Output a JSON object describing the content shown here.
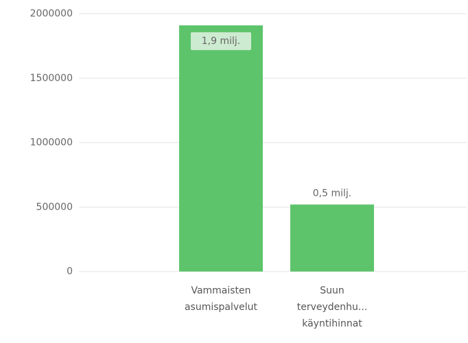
{
  "chart_data": {
    "type": "bar",
    "categories": [
      "Vammaisten asumispalvelut",
      "Suun terveydenhu... käyntihinnat"
    ],
    "values": [
      1910000,
      520000
    ],
    "value_labels": [
      "1,9 milj.",
      "0,5 milj."
    ],
    "color": "#5ec46c",
    "ylim": [
      0,
      2000000
    ],
    "yticks": [
      0,
      500000,
      1000000,
      1500000,
      2000000
    ],
    "grid": true
  }
}
